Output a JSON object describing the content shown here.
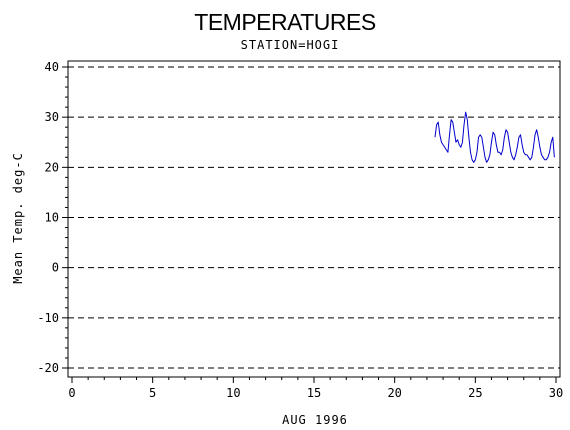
{
  "chart_data": {
    "type": "line",
    "title": "TEMPERATURES",
    "subtitle": "STATION=HOGI",
    "xlabel": "AUG 1996",
    "ylabel": "Mean Temp. deg-C",
    "xlim": [
      0,
      30
    ],
    "ylim": [
      -20,
      40
    ],
    "xticks": [
      0,
      5,
      10,
      15,
      20,
      25,
      30
    ],
    "yticks": [
      -20,
      -10,
      0,
      10,
      20,
      30,
      40
    ],
    "grid": "horizontal-dashed",
    "line_color": "#0000cc",
    "series": [
      {
        "x": [
          22.5,
          22.6,
          22.7,
          22.8,
          22.9,
          23.0,
          23.1,
          23.2,
          23.3,
          23.4,
          23.5,
          23.6,
          23.7,
          23.8,
          23.9,
          24.0,
          24.1,
          24.2,
          24.3,
          24.4,
          24.5,
          24.6,
          24.7,
          24.8,
          24.9,
          25.0,
          25.1,
          25.2,
          25.3,
          25.4,
          25.5,
          25.6,
          25.7,
          25.8,
          25.9,
          26.0,
          26.1,
          26.2,
          26.3,
          26.4,
          26.5,
          26.6,
          26.7,
          26.8,
          26.9,
          27.0,
          27.1,
          27.2,
          27.3,
          27.4,
          27.5,
          27.6,
          27.7,
          27.8,
          27.9,
          28.0,
          28.1,
          28.2,
          28.3,
          28.4,
          28.5,
          28.6,
          28.7,
          28.8,
          28.9,
          29.0,
          29.1,
          29.2,
          29.3,
          29.4,
          29.5,
          29.6,
          29.7,
          29.8,
          29.9
        ],
        "values": [
          26.0,
          28.5,
          29.0,
          26.5,
          25.0,
          24.5,
          24.0,
          23.5,
          23.0,
          26.5,
          29.5,
          29.0,
          27.0,
          25.0,
          25.5,
          24.5,
          24.0,
          25.0,
          28.5,
          31.0,
          29.5,
          26.0,
          23.0,
          21.5,
          21.0,
          21.5,
          23.0,
          26.0,
          26.5,
          26.0,
          24.0,
          22.0,
          21.0,
          21.5,
          22.5,
          25.0,
          27.0,
          26.5,
          24.5,
          23.0,
          23.0,
          22.5,
          23.5,
          26.0,
          27.5,
          27.0,
          25.0,
          23.0,
          22.0,
          21.5,
          22.5,
          24.0,
          26.0,
          26.5,
          24.5,
          23.0,
          22.5,
          22.5,
          22.0,
          21.5,
          22.0,
          24.0,
          26.5,
          27.5,
          26.0,
          24.0,
          22.5,
          22.0,
          21.5,
          21.5,
          22.0,
          23.0,
          25.0,
          26.0,
          22.0
        ]
      }
    ]
  }
}
